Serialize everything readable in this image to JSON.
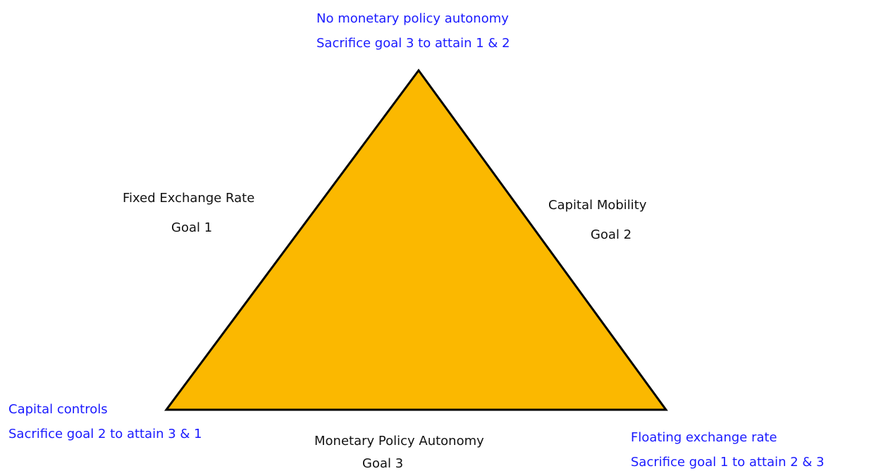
{
  "vertices": {
    "top": {
      "line1": "No monetary policy autonomy",
      "line2": "Sacrifice goal 3 to attain 1 & 2"
    },
    "left": {
      "line1": "Capital controls",
      "line2": "Sacrifice goal 2 to attain 3 & 1"
    },
    "right": {
      "line1": "Floating exchange rate",
      "line2": "Sacrifice goal 1 to attain 2 & 3"
    }
  },
  "sides": {
    "left": {
      "name": "Fixed Exchange Rate",
      "goal": "Goal 1"
    },
    "right": {
      "name": "Capital Mobility",
      "goal": "Goal 2"
    },
    "bottom": {
      "name": "Monetary Policy Autonomy",
      "goal": "Goal 3"
    }
  }
}
